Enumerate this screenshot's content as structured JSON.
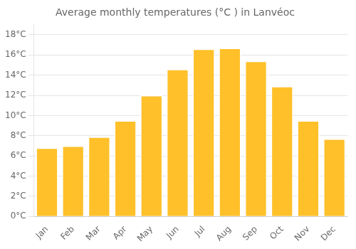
{
  "chart_data": {
    "type": "bar",
    "title": "Average monthly temperatures (°C ) in Lanvéoc",
    "categories": [
      "Jan",
      "Feb",
      "Mar",
      "Apr",
      "May",
      "Jun",
      "Jul",
      "Aug",
      "Sep",
      "Oct",
      "Nov",
      "Dec"
    ],
    "values": [
      6.8,
      7.0,
      7.9,
      9.5,
      12.0,
      14.6,
      16.6,
      16.7,
      15.4,
      12.9,
      9.5,
      7.7
    ],
    "color": "#FFC02A",
    "ylim": [
      0,
      19
    ],
    "yticks": [
      {
        "value": 0,
        "label": "0°C"
      },
      {
        "value": 2,
        "label": "2°C"
      },
      {
        "value": 4,
        "label": "4°C"
      },
      {
        "value": 6,
        "label": "6°C"
      },
      {
        "value": 8,
        "label": "8°C"
      },
      {
        "value": 10,
        "label": "10°C"
      },
      {
        "value": 12,
        "label": "12°C"
      },
      {
        "value": 14,
        "label": "14°C"
      },
      {
        "value": 16,
        "label": "16°C"
      },
      {
        "value": 18,
        "label": "18°C"
      }
    ],
    "grid": true
  }
}
